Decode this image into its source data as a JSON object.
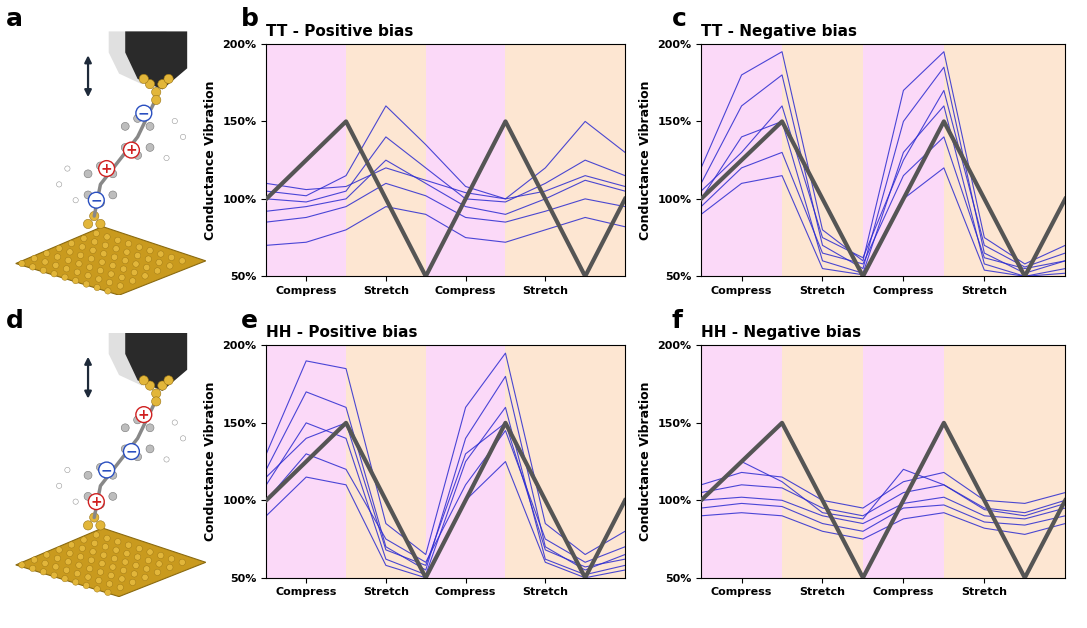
{
  "diagrams": [
    {
      "label": "a",
      "charges": [
        {
          "sign": "−",
          "color": "#2a4fc0"
        },
        {
          "sign": "+",
          "color": "#d02020"
        },
        {
          "sign": "+",
          "color": "#d02020"
        },
        {
          "sign": "−",
          "color": "#2a4fc0"
        }
      ]
    },
    {
      "label": "d",
      "charges": [
        {
          "sign": "+",
          "color": "#d02020"
        },
        {
          "sign": "−",
          "color": "#2a4fc0"
        },
        {
          "sign": "−",
          "color": "#2a4fc0"
        },
        {
          "sign": "+",
          "color": "#d02020"
        }
      ]
    }
  ],
  "chart_data": [
    {
      "type": "line",
      "label": "b",
      "title": "TT - Positive bias",
      "y_label": "Conductance Vibration",
      "xlim": [
        0,
        4.5
      ],
      "ylim": [
        50,
        200
      ],
      "xticks": [
        {
          "value": 0.5,
          "label": "Compress"
        },
        {
          "value": 1.5,
          "label": "Stretch"
        },
        {
          "value": 2.5,
          "label": "Compress"
        },
        {
          "value": 3.5,
          "label": "Stretch"
        }
      ],
      "yticks": [
        {
          "value": 50,
          "label": "50%"
        },
        {
          "value": 100,
          "label": "100%"
        },
        {
          "value": 150,
          "label": "150%"
        },
        {
          "value": 200,
          "label": "200%"
        }
      ],
      "bands": [
        {
          "from": 0,
          "to": 1,
          "color": "#fbd9f8"
        },
        {
          "from": 1,
          "to": 2,
          "color": "#fde6d2"
        },
        {
          "from": 2,
          "to": 3,
          "color": "#fbd9f8"
        },
        {
          "from": 3,
          "to": 4.5,
          "color": "#fde6d2"
        }
      ],
      "x": [
        0,
        0.5,
        1,
        1.5,
        2,
        2.5,
        3,
        3.5,
        4,
        4.5
      ],
      "series": [
        {
          "color": "#2b2bd0",
          "values": [
            100,
            98,
            105,
            140,
            120,
            100,
            98,
            110,
            125,
            115
          ]
        },
        {
          "color": "#2b2bd0",
          "values": [
            92,
            95,
            100,
            125,
            110,
            95,
            90,
            100,
            112,
            105
          ]
        },
        {
          "color": "#2b2bd0",
          "values": [
            85,
            88,
            95,
            110,
            102,
            88,
            85,
            92,
            100,
            95
          ]
        },
        {
          "color": "#2b2bd0",
          "values": [
            105,
            102,
            115,
            160,
            135,
            108,
            100,
            120,
            150,
            130
          ]
        },
        {
          "color": "#2b2bd0",
          "values": [
            70,
            72,
            80,
            95,
            90,
            75,
            72,
            80,
            88,
            82
          ]
        },
        {
          "color": "#2b2bd0",
          "values": [
            110,
            106,
            108,
            120,
            112,
            104,
            100,
            105,
            115,
            108
          ]
        },
        {
          "color": "#555555",
          "x": [
            0,
            1,
            2,
            3,
            4,
            4.5
          ],
          "values": [
            100,
            150,
            50,
            150,
            50,
            100
          ]
        }
      ]
    },
    {
      "type": "line",
      "label": "c",
      "title": "TT - Negative bias",
      "y_label": "Conductance Vibration",
      "xlim": [
        0,
        4.5
      ],
      "ylim": [
        50,
        200
      ],
      "xticks": [
        {
          "value": 0.5,
          "label": "Compress"
        },
        {
          "value": 1.5,
          "label": "Stretch"
        },
        {
          "value": 2.5,
          "label": "Compress"
        },
        {
          "value": 3.5,
          "label": "Stretch"
        }
      ],
      "yticks": [
        {
          "value": 50,
          "label": "50%"
        },
        {
          "value": 100,
          "label": "100%"
        },
        {
          "value": 150,
          "label": "150%"
        },
        {
          "value": 200,
          "label": "200%"
        }
      ],
      "bands": [
        {
          "from": 0,
          "to": 1,
          "color": "#fbd9f8"
        },
        {
          "from": 1,
          "to": 2,
          "color": "#fde6d2"
        },
        {
          "from": 2,
          "to": 3,
          "color": "#fbd9f8"
        },
        {
          "from": 3,
          "to": 4.5,
          "color": "#fde6d2"
        }
      ],
      "x": [
        0,
        0.5,
        1,
        1.5,
        2,
        2.5,
        3,
        3.5,
        4,
        4.5
      ],
      "series": [
        {
          "color": "#2b2bd0",
          "values": [
            110,
            160,
            180,
            70,
            55,
            150,
            185,
            65,
            52,
            60
          ]
        },
        {
          "color": "#2b2bd0",
          "values": [
            100,
            140,
            150,
            60,
            52,
            130,
            160,
            58,
            50,
            55
          ]
        },
        {
          "color": "#2b2bd0",
          "values": [
            95,
            120,
            130,
            65,
            58,
            115,
            140,
            62,
            55,
            60
          ]
        },
        {
          "color": "#2b2bd0",
          "values": [
            120,
            180,
            195,
            80,
            60,
            170,
            195,
            75,
            58,
            70
          ]
        },
        {
          "color": "#2b2bd0",
          "values": [
            90,
            110,
            115,
            55,
            51,
            100,
            120,
            54,
            50,
            52
          ]
        },
        {
          "color": "#2b2bd0",
          "values": [
            105,
            130,
            160,
            75,
            62,
            125,
            170,
            70,
            56,
            65
          ]
        },
        {
          "color": "#555555",
          "x": [
            0,
            1,
            2,
            3,
            4,
            4.5
          ],
          "values": [
            100,
            150,
            50,
            150,
            50,
            100
          ]
        }
      ]
    },
    {
      "type": "line",
      "label": "e",
      "title": "HH - Positive bias",
      "y_label": "Conductance Vibration",
      "xlim": [
        0,
        4.5
      ],
      "ylim": [
        50,
        200
      ],
      "xticks": [
        {
          "value": 0.5,
          "label": "Compress"
        },
        {
          "value": 1.5,
          "label": "Stretch"
        },
        {
          "value": 2.5,
          "label": "Compress"
        },
        {
          "value": 3.5,
          "label": "Stretch"
        }
      ],
      "yticks": [
        {
          "value": 50,
          "label": "50%"
        },
        {
          "value": 100,
          "label": "100%"
        },
        {
          "value": 150,
          "label": "150%"
        },
        {
          "value": 200,
          "label": "200%"
        }
      ],
      "bands": [
        {
          "from": 0,
          "to": 1,
          "color": "#fbd9f8"
        },
        {
          "from": 1,
          "to": 2,
          "color": "#fde6d2"
        },
        {
          "from": 2,
          "to": 3,
          "color": "#fbd9f8"
        },
        {
          "from": 3,
          "to": 4.5,
          "color": "#fde6d2"
        }
      ],
      "x": [
        0,
        0.5,
        1,
        1.5,
        2,
        2.5,
        3,
        3.5,
        4,
        4.5
      ],
      "series": [
        {
          "color": "#2b2bd0",
          "values": [
            120,
            170,
            160,
            70,
            55,
            140,
            180,
            70,
            55,
            65
          ]
        },
        {
          "color": "#2b2bd0",
          "values": [
            110,
            150,
            140,
            62,
            52,
            125,
            160,
            62,
            52,
            58
          ]
        },
        {
          "color": "#2b2bd0",
          "values": [
            100,
            130,
            120,
            75,
            60,
            110,
            145,
            75,
            60,
            70
          ]
        },
        {
          "color": "#2b2bd0",
          "values": [
            130,
            190,
            185,
            85,
            65,
            160,
            195,
            85,
            65,
            80
          ]
        },
        {
          "color": "#2b2bd0",
          "values": [
            90,
            115,
            110,
            58,
            50,
            100,
            125,
            60,
            50,
            55
          ]
        },
        {
          "color": "#2b2bd0",
          "values": [
            115,
            140,
            150,
            68,
            58,
            130,
            150,
            68,
            57,
            62
          ]
        },
        {
          "color": "#555555",
          "x": [
            0,
            1,
            2,
            3,
            4,
            4.5
          ],
          "values": [
            100,
            150,
            50,
            150,
            50,
            100
          ]
        }
      ]
    },
    {
      "type": "line",
      "label": "f",
      "title": "HH - Negative bias",
      "y_label": "Conductance Vibration",
      "xlim": [
        0,
        4.5
      ],
      "ylim": [
        50,
        200
      ],
      "xticks": [
        {
          "value": 0.5,
          "label": "Compress"
        },
        {
          "value": 1.5,
          "label": "Stretch"
        },
        {
          "value": 2.5,
          "label": "Compress"
        },
        {
          "value": 3.5,
          "label": "Stretch"
        }
      ],
      "yticks": [
        {
          "value": 50,
          "label": "50%"
        },
        {
          "value": 100,
          "label": "100%"
        },
        {
          "value": 150,
          "label": "150%"
        },
        {
          "value": 200,
          "label": "200%"
        }
      ],
      "bands": [
        {
          "from": 0,
          "to": 1,
          "color": "#fbd9f8"
        },
        {
          "from": 1,
          "to": 2,
          "color": "#fde6d2"
        },
        {
          "from": 2,
          "to": 3,
          "color": "#fbd9f8"
        },
        {
          "from": 3,
          "to": 4.5,
          "color": "#fde6d2"
        }
      ],
      "x": [
        0,
        0.5,
        1,
        1.5,
        2,
        2.5,
        3,
        3.5,
        4,
        4.5
      ],
      "series": [
        {
          "color": "#2b2bd0",
          "values": [
            105,
            110,
            108,
            95,
            90,
            105,
            110,
            95,
            92,
            100
          ]
        },
        {
          "color": "#2b2bd0",
          "values": [
            100,
            102,
            100,
            90,
            85,
            98,
            102,
            90,
            88,
            95
          ]
        },
        {
          "color": "#2b2bd0",
          "values": [
            95,
            98,
            96,
            85,
            80,
            95,
            97,
            86,
            84,
            90
          ]
        },
        {
          "color": "#2b2bd0",
          "values": [
            110,
            118,
            115,
            100,
            95,
            112,
            118,
            100,
            98,
            105
          ]
        },
        {
          "color": "#2b2bd0",
          "values": [
            90,
            92,
            90,
            80,
            75,
            88,
            92,
            82,
            78,
            85
          ]
        },
        {
          "color": "#2b2bd0",
          "values": [
            100,
            125,
            112,
            92,
            88,
            120,
            110,
            94,
            90,
            98
          ]
        },
        {
          "color": "#555555",
          "x": [
            0,
            1,
            2,
            3,
            4,
            4.5
          ],
          "values": [
            100,
            150,
            50,
            150,
            50,
            100
          ]
        }
      ]
    }
  ]
}
